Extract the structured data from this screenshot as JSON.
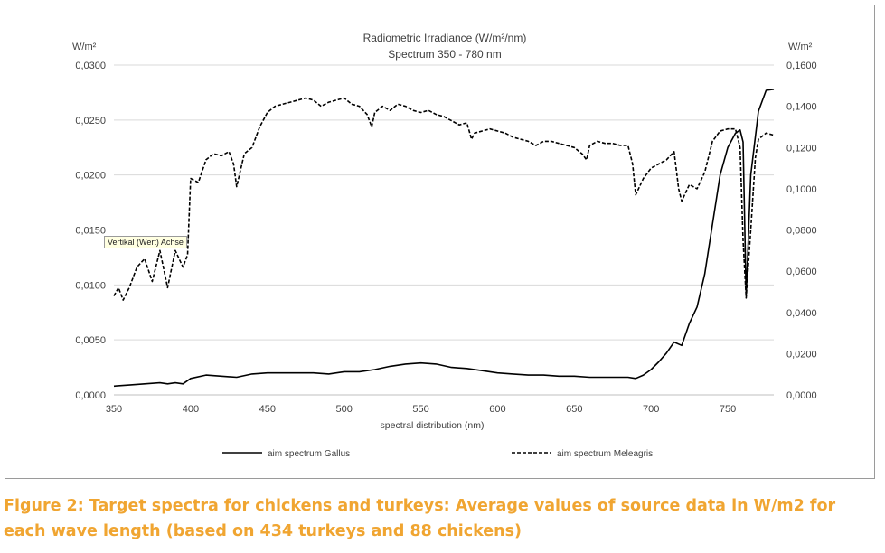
{
  "caption": "Figure 2: Target spectra for chickens and turkeys: Average values of source data in W/m2 for each wave length (based on 434 turkeys and 88 chickens)",
  "tooltip": "Vertikal (Wert) Achse",
  "colors": {
    "caption": "#f0a531",
    "line": "#000000",
    "grid": "#d9d9d9",
    "text": "#404040"
  },
  "chart_data": {
    "type": "line",
    "title": "Radiometric Irradiance (W/m²/nm)",
    "subtitle": "Spectrum 350 - 780 nm",
    "xlabel": "spectral distribution (nm)",
    "ylabel_left": "W/m²",
    "ylabel_right": "W/m²",
    "xlim": [
      350,
      780
    ],
    "ylim_left": [
      0,
      0.03
    ],
    "ylim_right": [
      0,
      0.16
    ],
    "x_ticks": [
      "350",
      "400",
      "450",
      "500",
      "550",
      "600",
      "650",
      "700",
      "750"
    ],
    "y_ticks_left": [
      "0,0000",
      "0,0050",
      "0,0100",
      "0,0150",
      "0,0200",
      "0,0250",
      "0,0300"
    ],
    "y_ticks_right": [
      "0,0000",
      "0,0200",
      "0,0400",
      "0,0600",
      "0,0800",
      "0,1000",
      "0,1200",
      "0,1400",
      "0,1600"
    ],
    "legend_position": "bottom",
    "series": [
      {
        "name": "aim spectrum Gallus",
        "axis": "left",
        "style": "solid",
        "x": [
          350,
          360,
          370,
          380,
          385,
          390,
          395,
          400,
          410,
          420,
          430,
          440,
          450,
          460,
          470,
          480,
          490,
          500,
          510,
          520,
          530,
          540,
          550,
          560,
          570,
          580,
          590,
          600,
          610,
          620,
          630,
          640,
          650,
          660,
          670,
          680,
          685,
          690,
          695,
          700,
          705,
          710,
          715,
          720,
          725,
          730,
          735,
          740,
          745,
          750,
          755,
          758,
          760,
          762,
          765,
          770,
          775,
          780
        ],
        "values": [
          0.0008,
          0.0009,
          0.001,
          0.0011,
          0.001,
          0.0011,
          0.001,
          0.0015,
          0.0018,
          0.0017,
          0.0016,
          0.0019,
          0.002,
          0.002,
          0.002,
          0.002,
          0.0019,
          0.0021,
          0.0021,
          0.0023,
          0.0026,
          0.0028,
          0.0029,
          0.0028,
          0.0025,
          0.0024,
          0.0022,
          0.002,
          0.0019,
          0.0018,
          0.0018,
          0.0017,
          0.0017,
          0.0016,
          0.0016,
          0.0016,
          0.0016,
          0.0015,
          0.0018,
          0.0023,
          0.003,
          0.0038,
          0.0048,
          0.0045,
          0.0065,
          0.008,
          0.011,
          0.0155,
          0.02,
          0.0225,
          0.0238,
          0.0241,
          0.023,
          0.009,
          0.02,
          0.0258,
          0.0277,
          0.0278
        ]
      },
      {
        "name": "aim spectrum Meleagris",
        "axis": "right",
        "style": "dashed",
        "x": [
          350,
          353,
          356,
          360,
          365,
          370,
          375,
          380,
          385,
          390,
          395,
          398,
          400,
          405,
          410,
          415,
          420,
          425,
          428,
          430,
          435,
          440,
          445,
          450,
          455,
          460,
          465,
          470,
          475,
          480,
          485,
          490,
          495,
          500,
          505,
          510,
          515,
          518,
          520,
          525,
          530,
          535,
          540,
          545,
          550,
          555,
          560,
          565,
          570,
          575,
          580,
          583,
          585,
          590,
          595,
          600,
          605,
          610,
          615,
          620,
          625,
          630,
          635,
          640,
          645,
          650,
          655,
          658,
          660,
          665,
          670,
          675,
          680,
          685,
          688,
          690,
          695,
          700,
          705,
          710,
          715,
          718,
          720,
          725,
          730,
          735,
          740,
          745,
          750,
          755,
          758,
          760,
          762,
          765,
          768,
          770,
          775,
          780
        ],
        "values": [
          0.048,
          0.052,
          0.046,
          0.052,
          0.062,
          0.066,
          0.055,
          0.07,
          0.052,
          0.07,
          0.062,
          0.068,
          0.105,
          0.103,
          0.114,
          0.117,
          0.116,
          0.118,
          0.112,
          0.101,
          0.117,
          0.12,
          0.13,
          0.137,
          0.14,
          0.141,
          0.142,
          0.143,
          0.144,
          0.143,
          0.14,
          0.142,
          0.143,
          0.144,
          0.141,
          0.14,
          0.136,
          0.13,
          0.137,
          0.14,
          0.138,
          0.141,
          0.14,
          0.138,
          0.137,
          0.138,
          0.136,
          0.135,
          0.133,
          0.131,
          0.132,
          0.124,
          0.127,
          0.128,
          0.129,
          0.128,
          0.127,
          0.125,
          0.124,
          0.123,
          0.121,
          0.123,
          0.123,
          0.122,
          0.121,
          0.12,
          0.117,
          0.114,
          0.121,
          0.123,
          0.122,
          0.122,
          0.121,
          0.121,
          0.112,
          0.097,
          0.105,
          0.11,
          0.112,
          0.114,
          0.118,
          0.1,
          0.094,
          0.102,
          0.1,
          0.108,
          0.123,
          0.128,
          0.129,
          0.129,
          0.12,
          0.075,
          0.047,
          0.08,
          0.115,
          0.124,
          0.127,
          0.126
        ]
      }
    ]
  }
}
